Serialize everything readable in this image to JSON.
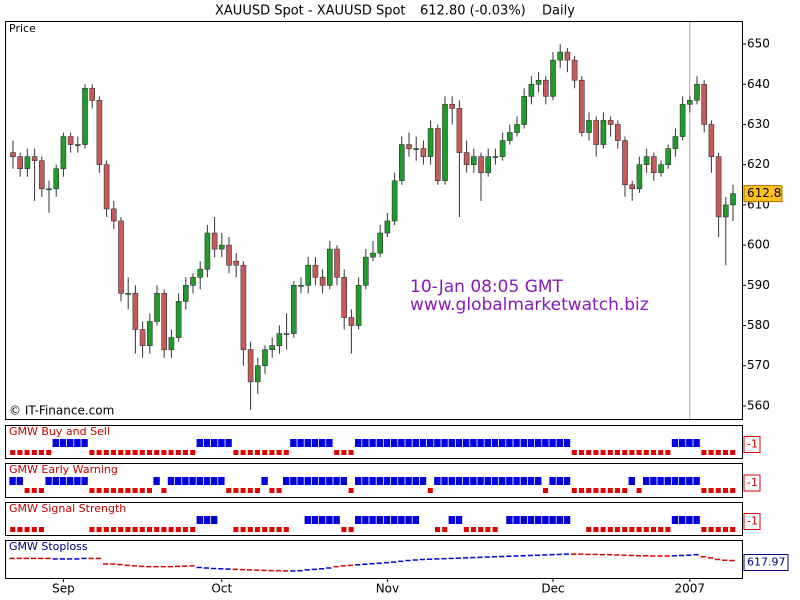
{
  "chart_data": {
    "type": "candlestick",
    "title": [
      "XAUUSD Spot - XAUUSD Spot",
      "612.80 (-0.03%)",
      "Daily"
    ],
    "panel_label": "Price",
    "copyright": "© IT-Finance.com",
    "annotations": [
      "10-Jan 08:05 GMT",
      "www.globalmarketwatch.biz"
    ],
    "colors": {
      "up": "#1f9d2a",
      "down": "#c65a5a",
      "buy": "#0000e0",
      "sell": "#e00000"
    },
    "ylim": [
      557,
      652
    ],
    "yticks": [
      560,
      570,
      580,
      590,
      600,
      610,
      620,
      630,
      640,
      650
    ],
    "xticks": [
      {
        "value": 7,
        "label": "Sep"
      },
      {
        "value": 29,
        "label": "Oct"
      },
      {
        "value": 52,
        "label": "Nov"
      },
      {
        "value": 75,
        "label": "Dec"
      },
      {
        "value": 94,
        "label": "2007"
      }
    ],
    "candles": [
      [
        623,
        626,
        619,
        622
      ],
      [
        622,
        623,
        617,
        619
      ],
      [
        619,
        624,
        617,
        622
      ],
      [
        622,
        624,
        611,
        621
      ],
      [
        621,
        622,
        612,
        614
      ],
      [
        614,
        616,
        608,
        614
      ],
      [
        614,
        620,
        612,
        619
      ],
      [
        619,
        628,
        617,
        627
      ],
      [
        627,
        628,
        623,
        625
      ],
      [
        625,
        627,
        623,
        625
      ],
      [
        625,
        640,
        624,
        639
      ],
      [
        639,
        640,
        634,
        636
      ],
      [
        636,
        637,
        618,
        620
      ],
      [
        620,
        621,
        607,
        609
      ],
      [
        609,
        611,
        604,
        606
      ],
      [
        606,
        607,
        586,
        588
      ],
      [
        588,
        592,
        584,
        588
      ],
      [
        588,
        590,
        573,
        579
      ],
      [
        579,
        581,
        572,
        575
      ],
      [
        575,
        583,
        573,
        581
      ],
      [
        581,
        590,
        580,
        588
      ],
      [
        588,
        589,
        572,
        574
      ],
      [
        574,
        579,
        572,
        577
      ],
      [
        577,
        588,
        576,
        586
      ],
      [
        586,
        592,
        584,
        590
      ],
      [
        590,
        593,
        588,
        592
      ],
      [
        592,
        596,
        589,
        594
      ],
      [
        594,
        605,
        592,
        603
      ],
      [
        603,
        607,
        597,
        599
      ],
      [
        599,
        603,
        597,
        600
      ],
      [
        600,
        602,
        593,
        595
      ],
      [
        596,
        598,
        592,
        595
      ],
      [
        595,
        596,
        570,
        574
      ],
      [
        574,
        576,
        559,
        566
      ],
      [
        566,
        572,
        563,
        570
      ],
      [
        570,
        575,
        568,
        574
      ],
      [
        574,
        577,
        572,
        575
      ],
      [
        575,
        580,
        573,
        578
      ],
      [
        578,
        583,
        574,
        578
      ],
      [
        578,
        591,
        577,
        590
      ],
      [
        590,
        592,
        588,
        590
      ],
      [
        590,
        597,
        588,
        595
      ],
      [
        595,
        597,
        590,
        592
      ],
      [
        592,
        594,
        588,
        590
      ],
      [
        590,
        601,
        589,
        599
      ],
      [
        599,
        600,
        590,
        592
      ],
      [
        592,
        594,
        579,
        582
      ],
      [
        582,
        584,
        573,
        580
      ],
      [
        580,
        592,
        579,
        590
      ],
      [
        590,
        599,
        589,
        597
      ],
      [
        597,
        601,
        596,
        598
      ],
      [
        598,
        605,
        597,
        603
      ],
      [
        603,
        608,
        602,
        606
      ],
      [
        606,
        618,
        605,
        616
      ],
      [
        616,
        627,
        615,
        625
      ],
      [
        625,
        628,
        622,
        624
      ],
      [
        624,
        627,
        621,
        624
      ],
      [
        624,
        626,
        620,
        622
      ],
      [
        622,
        631,
        620,
        629
      ],
      [
        629,
        630,
        615,
        616
      ],
      [
        616,
        637,
        615,
        635
      ],
      [
        635,
        637,
        630,
        634
      ],
      [
        634,
        636,
        607,
        623
      ],
      [
        623,
        626,
        618,
        620
      ],
      [
        620,
        624,
        618,
        622
      ],
      [
        622,
        623,
        611,
        618
      ],
      [
        618,
        624,
        617,
        622
      ],
      [
        622,
        624,
        620,
        622
      ],
      [
        622,
        628,
        621,
        626
      ],
      [
        626,
        630,
        625,
        628
      ],
      [
        628,
        632,
        627,
        630
      ],
      [
        630,
        639,
        629,
        637
      ],
      [
        637,
        642,
        635,
        640
      ],
      [
        640,
        643,
        638,
        641
      ],
      [
        641,
        642,
        635,
        637
      ],
      [
        637,
        648,
        636,
        646
      ],
      [
        646,
        650,
        644,
        648
      ],
      [
        648,
        649,
        643,
        646
      ],
      [
        646,
        647,
        639,
        641
      ],
      [
        641,
        642,
        627,
        628
      ],
      [
        628,
        633,
        626,
        631
      ],
      [
        631,
        632,
        622,
        625
      ],
      [
        625,
        633,
        624,
        631
      ],
      [
        631,
        632,
        627,
        630
      ],
      [
        630,
        631,
        624,
        626
      ],
      [
        626,
        627,
        612,
        615
      ],
      [
        615,
        616,
        611,
        614
      ],
      [
        614,
        622,
        613,
        620
      ],
      [
        620,
        624,
        618,
        622
      ],
      [
        622,
        623,
        616,
        618
      ],
      [
        618,
        621,
        617,
        620
      ],
      [
        620,
        625,
        619,
        624
      ],
      [
        624,
        629,
        622,
        627
      ],
      [
        627,
        637,
        626,
        635
      ],
      [
        635,
        637,
        633,
        636
      ],
      [
        636,
        642,
        635,
        640
      ],
      [
        640,
        641,
        628,
        630
      ],
      [
        630,
        631,
        618,
        622
      ],
      [
        622,
        623,
        602,
        607
      ],
      [
        607,
        612,
        595,
        610
      ],
      [
        610,
        615,
        606,
        612.8
      ]
    ],
    "indicators": [
      {
        "name": "GMW Buy and Sell",
        "values": [
          -1,
          -1,
          -1,
          -1,
          -1,
          -1,
          1,
          1,
          1,
          1,
          1,
          -1,
          -1,
          -1,
          -1,
          -1,
          -1,
          -1,
          -1,
          -1,
          -1,
          -1,
          -1,
          -1,
          -1,
          -1,
          1,
          1,
          1,
          1,
          1,
          -1,
          -1,
          -1,
          -1,
          -1,
          -1,
          -1,
          -1,
          1,
          1,
          1,
          1,
          1,
          1,
          -1,
          -1,
          -1,
          1,
          1,
          1,
          1,
          1,
          1,
          1,
          1,
          1,
          1,
          1,
          1,
          1,
          1,
          1,
          1,
          1,
          1,
          1,
          1,
          1,
          1,
          1,
          1,
          1,
          1,
          1,
          1,
          1,
          1,
          -1,
          -1,
          -1,
          -1,
          -1,
          -1,
          -1,
          -1,
          -1,
          -1,
          -1,
          -1,
          -1,
          -1,
          1,
          1,
          1,
          1,
          -1,
          -1,
          -1,
          -1,
          -1
        ]
      },
      {
        "name": "GMW Early Warning",
        "values": [
          1,
          1,
          -1,
          -1,
          -1,
          1,
          1,
          1,
          1,
          1,
          1,
          -1,
          -1,
          -1,
          -1,
          -1,
          -1,
          -1,
          -1,
          -1,
          1,
          -1,
          1,
          1,
          1,
          1,
          1,
          1,
          1,
          1,
          -1,
          -1,
          -1,
          -1,
          -1,
          1,
          -1,
          -1,
          1,
          1,
          1,
          1,
          1,
          1,
          1,
          1,
          1,
          -1,
          1,
          1,
          1,
          1,
          1,
          1,
          1,
          1,
          1,
          1,
          -1,
          1,
          1,
          1,
          1,
          1,
          1,
          1,
          1,
          1,
          1,
          1,
          1,
          1,
          1,
          1,
          -1,
          1,
          1,
          1,
          -1,
          -1,
          -1,
          -1,
          -1,
          -1,
          -1,
          -1,
          1,
          -1,
          1,
          1,
          1,
          1,
          1,
          1,
          1,
          1,
          -1,
          -1,
          -1,
          -1,
          -1
        ]
      },
      {
        "name": "GMW Signal Strength",
        "values": [
          -1,
          -1,
          -1,
          -1,
          -1,
          0,
          0,
          0,
          0,
          0,
          0,
          -1,
          -1,
          -1,
          -1,
          -1,
          -1,
          -1,
          -1,
          -1,
          -1,
          -1,
          -1,
          -1,
          -1,
          -1,
          1,
          1,
          1,
          0,
          0,
          -1,
          -1,
          -1,
          -1,
          -1,
          -1,
          -1,
          -1,
          0,
          0,
          1,
          1,
          1,
          1,
          1,
          -1,
          -1,
          1,
          1,
          1,
          1,
          1,
          1,
          1,
          1,
          1,
          0,
          0,
          -1,
          -1,
          1,
          1,
          -1,
          -1,
          -1,
          -1,
          -1,
          0,
          1,
          1,
          1,
          1,
          1,
          1,
          1,
          1,
          1,
          0,
          0,
          -1,
          -1,
          -1,
          -1,
          -1,
          -1,
          -1,
          -1,
          -1,
          -1,
          -1,
          -1,
          1,
          1,
          1,
          1,
          -1,
          -1,
          -1,
          -1,
          -1
        ]
      }
    ],
    "stoploss": {
      "name": "GMW Stoploss",
      "ylim": [
        560,
        650
      ],
      "values": [
        626,
        626,
        626,
        626,
        626,
        626,
        624,
        624,
        624,
        624,
        626,
        626,
        626,
        605,
        605,
        603,
        600,
        598,
        596,
        595,
        595,
        595,
        595,
        596,
        597,
        598,
        592,
        590,
        588,
        587,
        586,
        585,
        584,
        583,
        582,
        581,
        580,
        580,
        579,
        579,
        580,
        583,
        585,
        587,
        590,
        595,
        598,
        600,
        602,
        604,
        606,
        608,
        610,
        612,
        615,
        618,
        620,
        622,
        623,
        624,
        625,
        626,
        627,
        628,
        629,
        630,
        631,
        632,
        633,
        634,
        635,
        636,
        637,
        638,
        639,
        640,
        641,
        642,
        642,
        642,
        641,
        641,
        640,
        640,
        639,
        638,
        637,
        636,
        636,
        635,
        635,
        635,
        636,
        637,
        638,
        640,
        632,
        628,
        622,
        619,
        617.97
      ]
    }
  }
}
